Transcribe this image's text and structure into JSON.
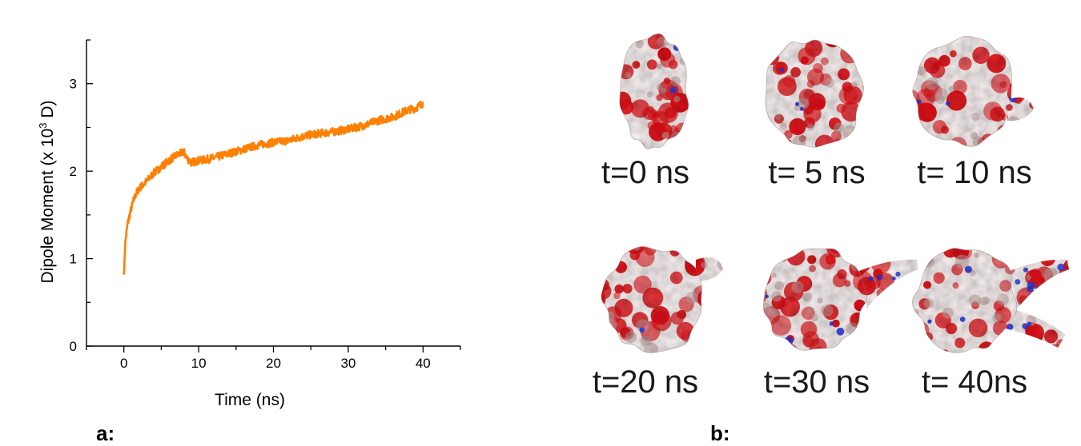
{
  "panel_a_label": "a",
  "panel_b_label": "b",
  "chart_data": {
    "type": "line",
    "xlabel": "Time (ns)",
    "ylabel_main": "Dipole Moment (x 10",
    "ylabel_sup": "3",
    "ylabel_tail": " D)",
    "xlim": [
      -5,
      45
    ],
    "ylim": [
      0,
      3.5
    ],
    "xticks": [
      0,
      10,
      20,
      30,
      40
    ],
    "yticks": [
      0,
      1,
      2,
      3
    ],
    "line_color": "#ff8000",
    "series": [
      {
        "x": [
          0,
          0.2,
          0.5,
          1,
          1.5,
          2,
          3,
          4,
          5,
          6,
          7,
          8,
          8.5,
          9,
          10,
          12,
          14,
          16,
          18,
          20,
          22,
          24,
          26,
          28,
          30,
          32,
          34,
          36,
          38,
          39,
          40
        ],
        "values": [
          0.82,
          1.2,
          1.4,
          1.58,
          1.72,
          1.8,
          1.88,
          1.98,
          2.05,
          2.12,
          2.18,
          2.22,
          2.14,
          2.1,
          2.12,
          2.15,
          2.2,
          2.25,
          2.3,
          2.33,
          2.35,
          2.4,
          2.43,
          2.45,
          2.48,
          2.52,
          2.58,
          2.62,
          2.7,
          2.72,
          2.78
        ]
      }
    ]
  },
  "snapshots": [
    {
      "label": "t=0 ns",
      "shape": "tall"
    },
    {
      "label": "t= 5 ns",
      "shape": "round"
    },
    {
      "label": "t= 10 ns",
      "shape": "round"
    },
    {
      "label": "t=20 ns",
      "shape": "round"
    },
    {
      "label": "t=30 ns",
      "shape": "tail"
    },
    {
      "label": "t= 40ns",
      "shape": "tail"
    }
  ],
  "surface_colors": {
    "negative": "#d9161b",
    "neutral": "#f2eaea",
    "positive": "#2a3bd6",
    "shade": "#b89a9a"
  }
}
